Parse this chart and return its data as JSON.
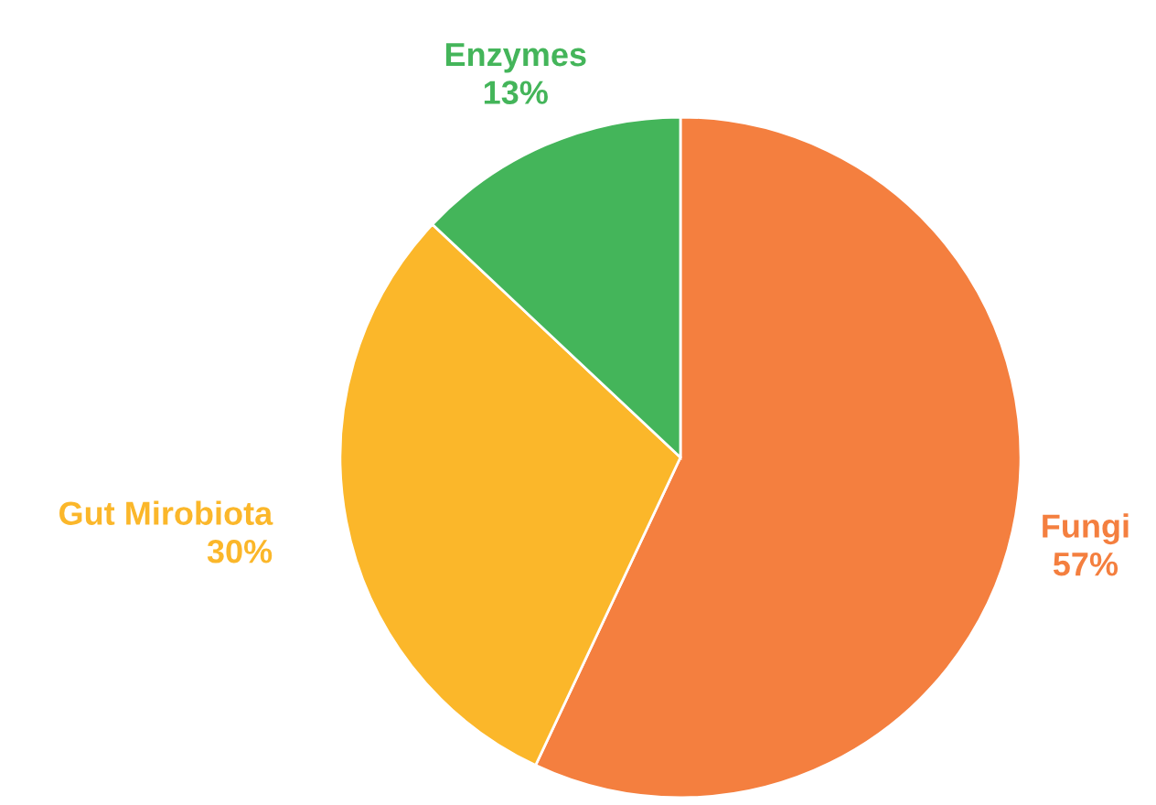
{
  "chart_data": {
    "type": "pie",
    "categories": [
      "Fungi",
      "Gut Mirobiota",
      "Enzymes"
    ],
    "values": [
      57,
      30,
      13
    ],
    "colors": [
      "#f47f3f",
      "#fbb72a",
      "#44b55a"
    ],
    "value_labels": [
      "57%",
      "30%",
      "13%"
    ],
    "legend": false
  }
}
